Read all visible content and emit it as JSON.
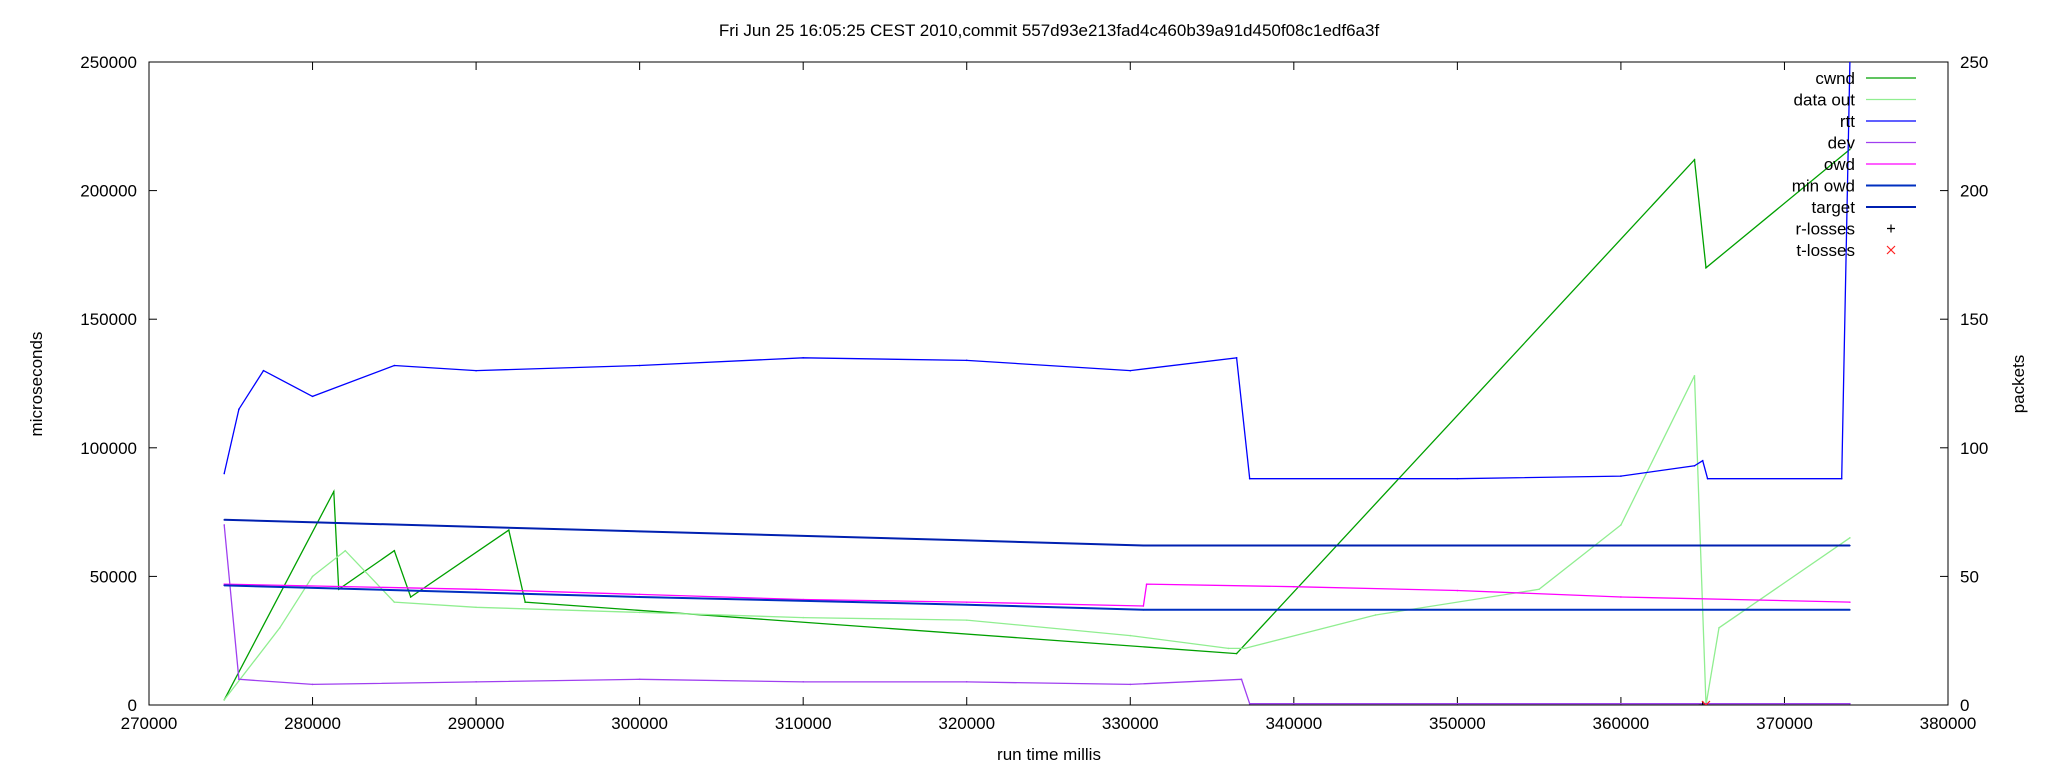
{
  "chart_data": {
    "type": "line",
    "title": "Fri Jun 25 16:05:25 CEST 2010,commit 557d93e213fad4c460b39a91d450f08c1edf6a3f",
    "xlabel": "run time millis",
    "ylabel": "microseconds",
    "y2label": "packets",
    "xlim": [
      270000,
      380000
    ],
    "ylim": [
      0,
      250000
    ],
    "y2lim": [
      0,
      250
    ],
    "xticks": [
      270000,
      280000,
      290000,
      300000,
      310000,
      320000,
      330000,
      340000,
      350000,
      360000,
      370000,
      380000
    ],
    "yticks": [
      0,
      50000,
      100000,
      150000,
      200000,
      250000
    ],
    "y2ticks": [
      0,
      50,
      100,
      150,
      200,
      250
    ],
    "grid": false,
    "legend_position": "top-right",
    "colors": {
      "cwnd": "#00a000",
      "data_out": "#90ee90",
      "rtt": "#0000ff",
      "dev": "#9f3ff0",
      "owd": "#ff00ff",
      "min_owd": "#0030c0",
      "target": "#0020b0",
      "r_losses": "#000000",
      "t_losses": "#ff2020"
    },
    "series": [
      {
        "name": "cwnd",
        "axis": "y2",
        "key": "cwnd",
        "x": [
          274600,
          281300,
          281600,
          285000,
          286000,
          292000,
          293000,
          336500,
          364500,
          365200,
          374000
        ],
        "y": [
          2,
          83,
          45,
          60,
          42,
          68,
          40,
          20,
          212,
          170,
          216
        ]
      },
      {
        "name": "data out",
        "axis": "y2",
        "key": "data_out",
        "x": [
          274600,
          278000,
          280000,
          282000,
          285000,
          290000,
          300000,
          310000,
          320000,
          330000,
          336000,
          337000,
          345000,
          355000,
          360000,
          364500,
          365200,
          366000,
          374000
        ],
        "y": [
          2,
          30,
          50,
          60,
          40,
          38,
          36,
          34,
          33,
          27,
          22,
          22,
          35,
          45,
          70,
          128,
          0,
          30,
          65
        ]
      },
      {
        "name": "rtt",
        "axis": "y",
        "key": "rtt",
        "x": [
          274600,
          275500,
          277000,
          280000,
          285000,
          290000,
          300000,
          310000,
          320000,
          330000,
          336500,
          337300,
          350000,
          360000,
          364500,
          365000,
          365300,
          373500,
          374000
        ],
        "y": [
          90000,
          115000,
          130000,
          120000,
          132000,
          130000,
          132000,
          135000,
          134000,
          130000,
          135000,
          88000,
          88000,
          89000,
          93000,
          95000,
          88000,
          88000,
          250000
        ]
      },
      {
        "name": "dev",
        "axis": "y",
        "key": "dev",
        "x": [
          274600,
          275500,
          280000,
          290000,
          300000,
          310000,
          320000,
          330000,
          336800,
          337300,
          374000
        ],
        "y": [
          70000,
          10000,
          8000,
          9000,
          10000,
          9000,
          9000,
          8000,
          10000,
          500,
          500
        ]
      },
      {
        "name": "owd",
        "axis": "y",
        "key": "owd",
        "x": [
          274600,
          290000,
          300000,
          310000,
          320000,
          330800,
          331000,
          340000,
          350000,
          360000,
          374000
        ],
        "y": [
          47000,
          45000,
          43000,
          41000,
          40000,
          38500,
          47000,
          46000,
          44500,
          42000,
          40000
        ]
      },
      {
        "name": "min owd",
        "axis": "y",
        "key": "min_owd",
        "x": [
          274600,
          300000,
          320000,
          330800,
          374000
        ],
        "y": [
          46500,
          42000,
          39000,
          37000,
          37000
        ]
      },
      {
        "name": "target",
        "axis": "y",
        "key": "target",
        "x": [
          274600,
          300000,
          320000,
          330800,
          374000
        ],
        "y": [
          72000,
          67500,
          64000,
          62000,
          62000
        ]
      },
      {
        "name": "r-losses",
        "axis": "y",
        "key": "r_losses",
        "marker": "+",
        "x": [
          365000
        ],
        "y": [
          0
        ]
      },
      {
        "name": "t-losses",
        "axis": "y",
        "key": "t_losses",
        "marker": "x",
        "x": [
          365200
        ],
        "y": [
          0
        ]
      }
    ]
  }
}
